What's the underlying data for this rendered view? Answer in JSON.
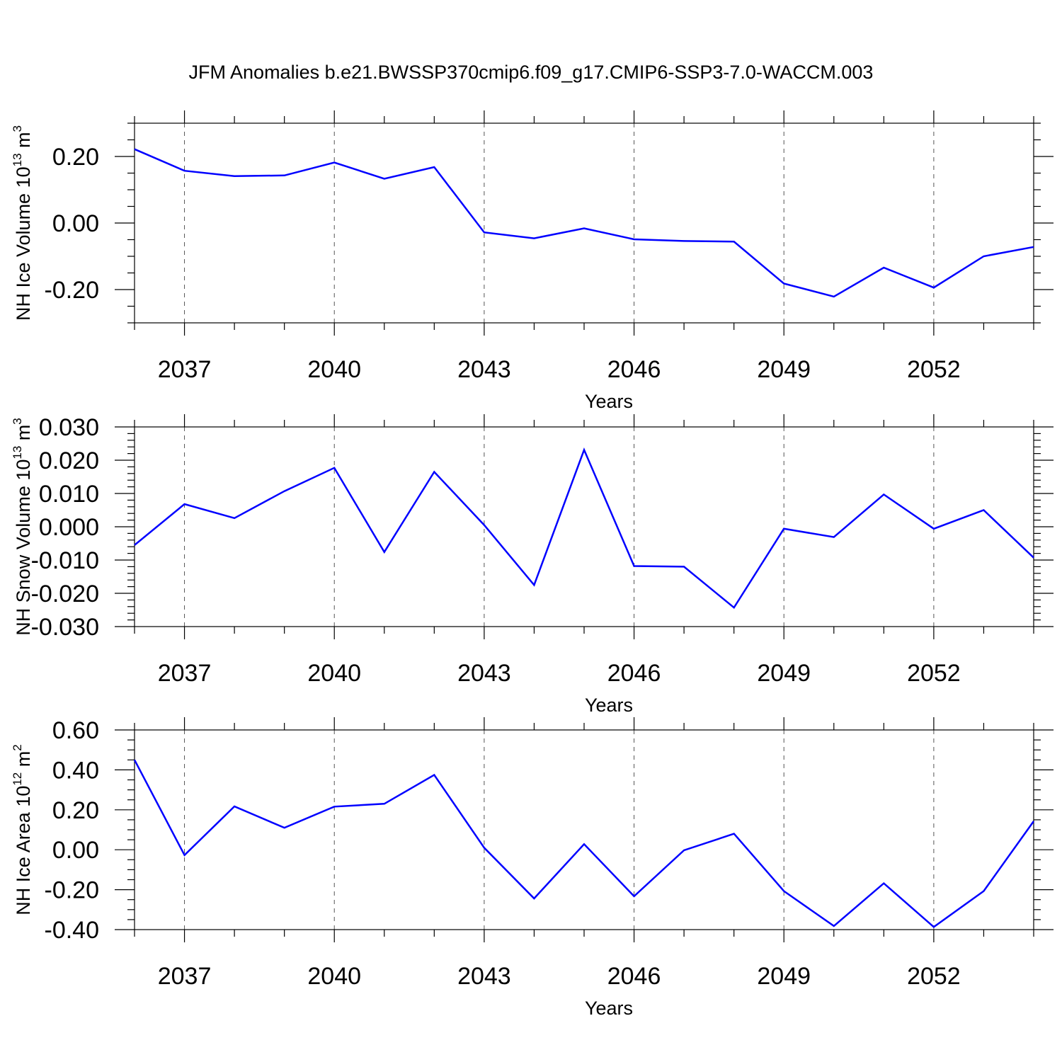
{
  "title": "JFM Anomalies b.e21.BWSSP370cmip6.f09_g17.CMIP6-SSP3-7.0-WACCM.003",
  "colors": {
    "line": "#0000ff",
    "axes": "#000000",
    "grid": "#555555"
  },
  "chart_data": [
    {
      "type": "line",
      "ylabel_main": "NH Ice Volume 10",
      "ylabel_exp": "13",
      "ylabel_unit": " m",
      "ylabel_unit_exp": "3",
      "xlabel": "Years",
      "xlim": [
        2036,
        2054
      ],
      "ylim": [
        -0.3,
        0.3
      ],
      "yticks": [
        -0.2,
        0.0,
        0.2
      ],
      "ytick_labels": [
        "-0.20",
        "0.00",
        "0.20"
      ],
      "yminor_step": 0.05,
      "xticks": [
        2037,
        2040,
        2043,
        2046,
        2049,
        2052
      ],
      "xtick_labels": [
        "2037",
        "2040",
        "2043",
        "2046",
        "2049",
        "2052"
      ],
      "x": [
        2036,
        2037,
        2038,
        2039,
        2040,
        2041,
        2042,
        2043,
        2044,
        2045,
        2046,
        2047,
        2048,
        2049,
        2050,
        2051,
        2052,
        2053,
        2054
      ],
      "series": [
        {
          "name": "NH Ice Volume",
          "values": [
            0.222,
            0.157,
            0.141,
            0.143,
            0.182,
            0.133,
            0.168,
            -0.028,
            -0.046,
            -0.016,
            -0.049,
            -0.054,
            -0.056,
            -0.182,
            -0.221,
            -0.134,
            -0.194,
            -0.1,
            -0.072
          ]
        }
      ]
    },
    {
      "type": "line",
      "ylabel_main": "NH Snow Volume 10",
      "ylabel_exp": "13",
      "ylabel_unit": " m",
      "ylabel_unit_exp": "3",
      "xlabel": "Years",
      "xlim": [
        2036,
        2054
      ],
      "ylim": [
        -0.03,
        0.03
      ],
      "yticks": [
        -0.03,
        -0.02,
        -0.01,
        0.0,
        0.01,
        0.02,
        0.03
      ],
      "ytick_labels": [
        "-0.030",
        "-0.020",
        "-0.010",
        "0.000",
        "0.010",
        "0.020",
        "0.030"
      ],
      "yminor_step": 0.002,
      "xticks": [
        2037,
        2040,
        2043,
        2046,
        2049,
        2052
      ],
      "xtick_labels": [
        "2037",
        "2040",
        "2043",
        "2046",
        "2049",
        "2052"
      ],
      "x": [
        2036,
        2037,
        2038,
        2039,
        2040,
        2041,
        2042,
        2043,
        2044,
        2045,
        2046,
        2047,
        2048,
        2049,
        2050,
        2051,
        2052,
        2053,
        2054
      ],
      "series": [
        {
          "name": "NH Snow Volume",
          "values": [
            -0.0055,
            0.0068,
            0.0026,
            0.0107,
            0.0177,
            -0.0076,
            0.0165,
            0.0005,
            -0.0175,
            0.0231,
            -0.0118,
            -0.012,
            -0.0243,
            -0.0006,
            -0.0031,
            0.0097,
            -0.0006,
            0.005,
            -0.0093
          ]
        }
      ]
    },
    {
      "type": "line",
      "ylabel_main": "NH Ice Area 10",
      "ylabel_exp": "12",
      "ylabel_unit": " m",
      "ylabel_unit_exp": "2",
      "xlabel": "Years",
      "xlim": [
        2036,
        2054
      ],
      "ylim": [
        -0.4,
        0.6
      ],
      "yticks": [
        -0.4,
        -0.2,
        0.0,
        0.2,
        0.4,
        0.6
      ],
      "ytick_labels": [
        "-0.40",
        "-0.20",
        "0.00",
        "0.20",
        "0.40",
        "0.60"
      ],
      "yminor_step": 0.05,
      "xticks": [
        2037,
        2040,
        2043,
        2046,
        2049,
        2052
      ],
      "xtick_labels": [
        "2037",
        "2040",
        "2043",
        "2046",
        "2049",
        "2052"
      ],
      "x": [
        2036,
        2037,
        2038,
        2039,
        2040,
        2041,
        2042,
        2043,
        2044,
        2045,
        2046,
        2047,
        2048,
        2049,
        2050,
        2051,
        2052,
        2053,
        2054
      ],
      "series": [
        {
          "name": "NH Ice Area",
          "values": [
            0.45,
            -0.027,
            0.217,
            0.11,
            0.216,
            0.23,
            0.375,
            0.01,
            -0.244,
            0.028,
            -0.233,
            -0.003,
            0.08,
            -0.207,
            -0.382,
            -0.168,
            -0.387,
            -0.207,
            0.143
          ]
        }
      ]
    }
  ]
}
